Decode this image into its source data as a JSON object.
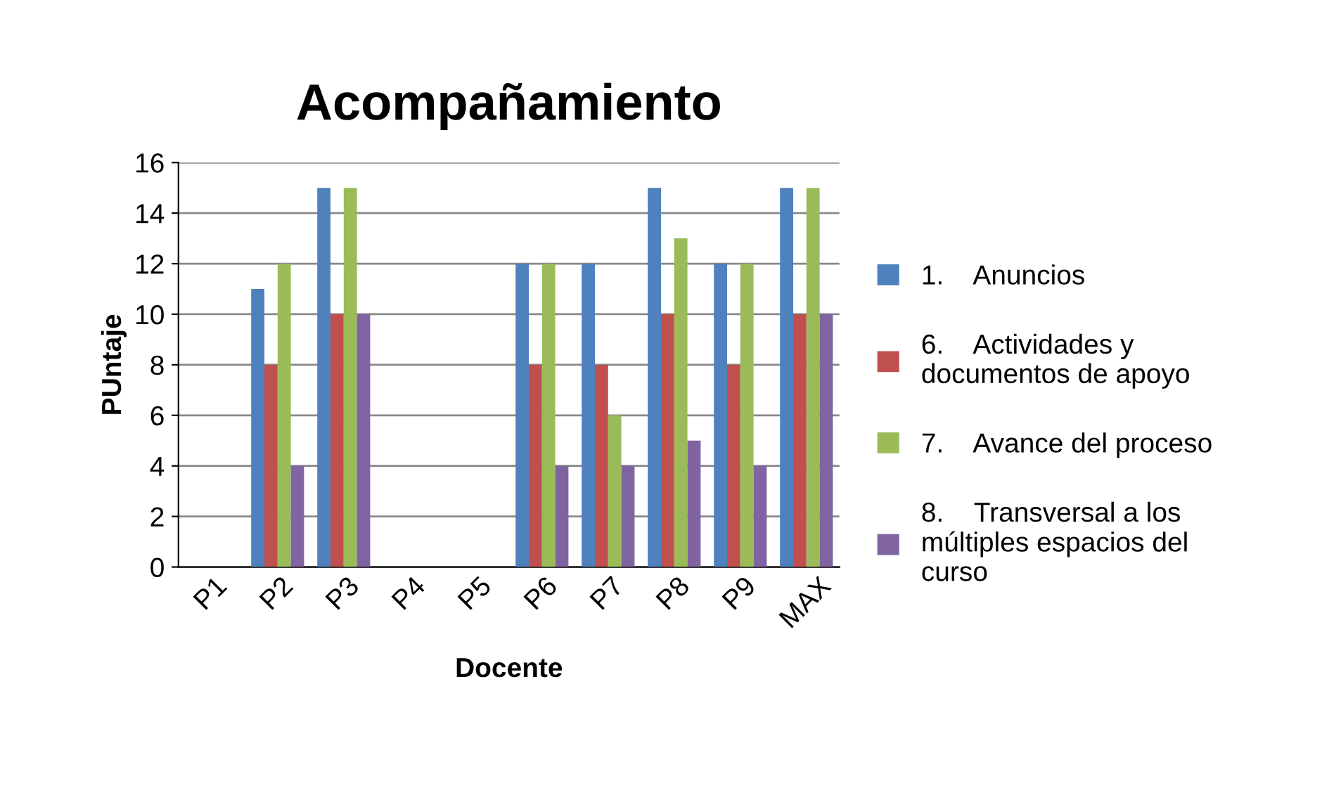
{
  "chart_data": {
    "type": "bar",
    "title": "Acompañamiento",
    "xlabel": "Docente",
    "ylabel": "PUntaje",
    "categories": [
      "P1",
      "P2",
      "P3",
      "P4",
      "P5",
      "P6",
      "P7",
      "P8",
      "P9",
      "MAX"
    ],
    "series": [
      {
        "name": "1.    Anuncios",
        "color": "#4f81bd",
        "values": [
          0,
          11,
          15,
          0,
          0,
          12,
          12,
          15,
          12,
          15
        ]
      },
      {
        "name": "6.    Actividades y\ndocumentos de apoyo",
        "color": "#c0504d",
        "values": [
          0,
          8,
          10,
          0,
          0,
          8,
          8,
          10,
          8,
          10
        ]
      },
      {
        "name": "7.    Avance del proceso",
        "color": "#9bbb59",
        "values": [
          0,
          12,
          15,
          0,
          0,
          12,
          6,
          13,
          12,
          15
        ]
      },
      {
        "name": "8.    Transversal a los\nmúltiples espacios del\ncurso",
        "color": "#8064a2",
        "values": [
          0,
          4,
          10,
          0,
          0,
          4,
          4,
          5,
          4,
          10
        ]
      }
    ],
    "ylim": [
      0,
      16
    ],
    "yticks": [
      0,
      2,
      4,
      6,
      8,
      10,
      12,
      14,
      16
    ],
    "grid": "y",
    "legend": "right"
  }
}
